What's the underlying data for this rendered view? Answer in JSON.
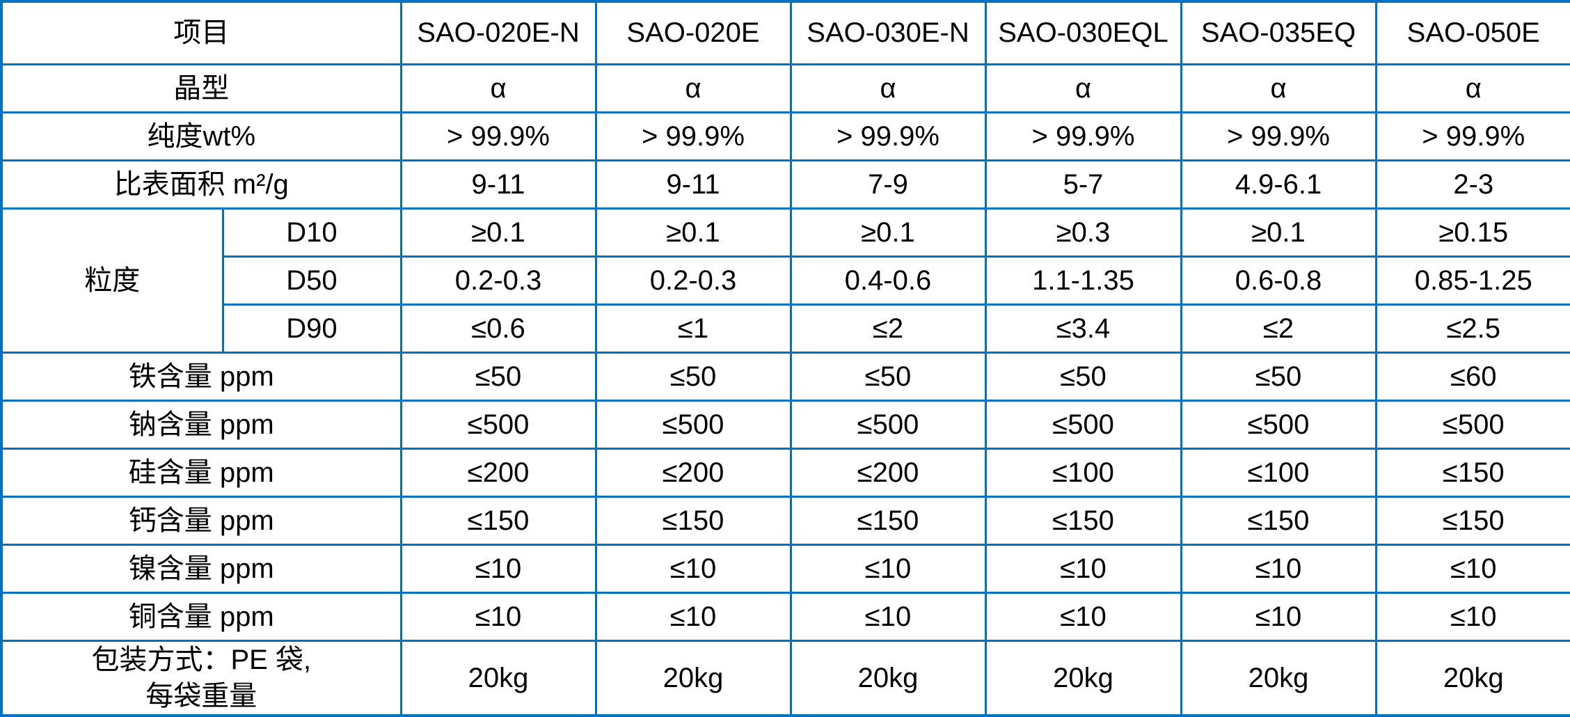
{
  "colors": {
    "accent_blue": "#0070C0",
    "row_shade_blue": "#CBDFF2",
    "header_divider_black": "#000000",
    "text": "#000000"
  },
  "table": {
    "header": {
      "item_label": "项目",
      "product_columns": [
        "SAO-020E-N",
        "SAO-020E",
        "SAO-030E-N",
        "SAO-030EQL",
        "SAO-035EQ",
        "SAO-050E"
      ]
    },
    "rows": [
      {
        "type": "simple",
        "label": "晶型",
        "shaded": true,
        "values": [
          "α",
          "α",
          "α",
          "α",
          "α",
          "α"
        ]
      },
      {
        "type": "simple",
        "label": "纯度wt%",
        "shaded": false,
        "values": [
          "> 99.9%",
          "> 99.9%",
          "> 99.9%",
          "> 99.9%",
          "> 99.9%",
          "> 99.9%"
        ]
      },
      {
        "type": "simple",
        "label": "比表面积 m²/g",
        "shaded": true,
        "values": [
          "9-11",
          "9-11",
          "7-9",
          "5-7",
          "4.9-6.1",
          "2-3"
        ]
      },
      {
        "type": "group-start",
        "group_label": "粒度",
        "label": "D10",
        "shaded": false,
        "values": [
          "≥0.1",
          "≥0.1",
          "≥0.1",
          "≥0.3",
          "≥0.1",
          "≥0.15"
        ]
      },
      {
        "type": "group-mid",
        "label": "D50",
        "shaded": true,
        "values": [
          "0.2-0.3",
          "0.2-0.3",
          "0.4-0.6",
          "1.1-1.35",
          "0.6-0.8",
          "0.85-1.25"
        ]
      },
      {
        "type": "group-end",
        "label": "D90",
        "shaded": false,
        "values": [
          "≤0.6",
          "≤1",
          "≤2",
          "≤3.4",
          "≤2",
          "≤2.5"
        ]
      },
      {
        "type": "simple",
        "label": "铁含量 ppm",
        "shaded": true,
        "values": [
          "≤50",
          "≤50",
          "≤50",
          "≤50",
          "≤50",
          "≤60"
        ]
      },
      {
        "type": "simple",
        "label": "钠含量 ppm",
        "shaded": false,
        "values": [
          "≤500",
          "≤500",
          "≤500",
          "≤500",
          "≤500",
          "≤500"
        ]
      },
      {
        "type": "simple",
        "label": "硅含量 ppm",
        "shaded": true,
        "values": [
          "≤200",
          "≤200",
          "≤200",
          "≤100",
          "≤100",
          "≤150"
        ]
      },
      {
        "type": "simple",
        "label": "钙含量 ppm",
        "shaded": false,
        "values": [
          "≤150",
          "≤150",
          "≤150",
          "≤150",
          "≤150",
          "≤150"
        ]
      },
      {
        "type": "simple",
        "label": "镍含量 ppm",
        "shaded": true,
        "values": [
          "≤10",
          "≤10",
          "≤10",
          "≤10",
          "≤10",
          "≤10"
        ]
      },
      {
        "type": "simple",
        "label": "铜含量 ppm",
        "shaded": false,
        "values": [
          "≤10",
          "≤10",
          "≤10",
          "≤10",
          "≤10",
          "≤10"
        ]
      },
      {
        "type": "packaging",
        "label_lines": [
          "包装方式：PE 袋,",
          "每袋重量"
        ],
        "shaded": true,
        "values": [
          "20kg",
          "20kg",
          "20kg",
          "20kg",
          "20kg",
          "20kg"
        ]
      }
    ]
  }
}
